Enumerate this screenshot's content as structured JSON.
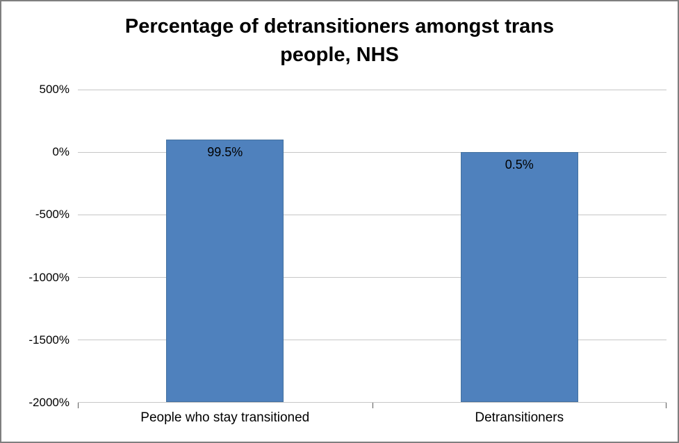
{
  "chart_data": {
    "type": "bar",
    "title": "Percentage of detransitioners amongst trans people, NHS",
    "categories": [
      "People who stay transitioned",
      "Detransitioners"
    ],
    "values": [
      99.5,
      0.5
    ],
    "data_labels": [
      "99.5%",
      "0.5%"
    ],
    "xlabel": "",
    "ylabel": "",
    "ylim": [
      -2000,
      500
    ],
    "yticks": [
      {
        "value": 500,
        "label": "500%"
      },
      {
        "value": 0,
        "label": "0%"
      },
      {
        "value": -500,
        "label": "-500%"
      },
      {
        "value": -1000,
        "label": "-1000%"
      },
      {
        "value": -1500,
        "label": "-1500%"
      },
      {
        "value": -2000,
        "label": "-2000%"
      }
    ],
    "bars_start_at": -2000,
    "grid": true,
    "legend": false,
    "bar_color": "#4F81BD",
    "bar_border_color": "#44719F",
    "gridline_color": "#C6C6C6",
    "axis_color": "#595959",
    "background_color": "#FFFFFF",
    "border_color": "#7F7F7F"
  }
}
